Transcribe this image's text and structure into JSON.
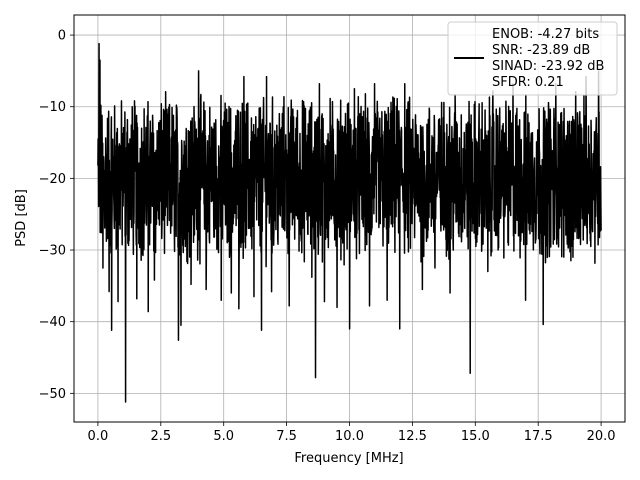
{
  "chart_data": {
    "type": "line",
    "title": "",
    "xlabel": "Frequency [MHz]",
    "ylabel": "PSD [dB]",
    "xlim": [
      -0.95,
      20.95
    ],
    "ylim": [
      -54,
      2.8
    ],
    "grid": true,
    "legend_position": "top-right",
    "xticks": [
      0.0,
      2.5,
      5.0,
      7.5,
      10.0,
      12.5,
      15.0,
      17.5,
      20.0
    ],
    "xtick_labels": [
      "0.0",
      "2.5",
      "5.0",
      "7.5",
      "10.0",
      "12.5",
      "15.0",
      "17.5",
      "20.0"
    ],
    "yticks": [
      0,
      -10,
      -20,
      -30,
      -40,
      -50
    ],
    "ytick_labels": [
      "0",
      "−10",
      "−20",
      "−30",
      "−40",
      "−50"
    ],
    "legend": {
      "lines": [
        "ENOB: -4.27 bits",
        "SNR: -23.89 dB",
        "SINAD: -23.92 dB",
        "SFDR: 0.21"
      ]
    },
    "series": [
      {
        "color": "#000000",
        "x_range_mhz": [
          0,
          20
        ],
        "noise_floor_band_db": [
          -30,
          -10
        ],
        "peak_db": [
          [
            0.05,
            -1.2
          ],
          [
            0.08,
            -3.5
          ],
          [
            0.1,
            -16.0
          ],
          [
            0.2,
            -32.5
          ],
          [
            0.45,
            -35.8
          ],
          [
            0.55,
            -41.2
          ],
          [
            0.8,
            -37.2
          ],
          [
            1.1,
            -51.2
          ],
          [
            1.55,
            -36.8
          ],
          [
            2.0,
            -38.6
          ],
          [
            2.25,
            -34.2
          ],
          [
            3.2,
            -42.6
          ],
          [
            3.3,
            -40.5
          ],
          [
            3.7,
            -34.8
          ],
          [
            4.3,
            -35.5
          ],
          [
            4.9,
            -37.0
          ],
          [
            5.3,
            -36.0
          ],
          [
            5.6,
            -38.2
          ],
          [
            6.2,
            -36.5
          ],
          [
            6.5,
            -41.2
          ],
          [
            6.9,
            -35.8
          ],
          [
            7.6,
            -37.8
          ],
          [
            8.5,
            -33.8
          ],
          [
            8.65,
            -47.8
          ],
          [
            9.0,
            -37.2
          ],
          [
            9.5,
            -38.0
          ],
          [
            10.0,
            -41.0
          ],
          [
            10.8,
            -37.8
          ],
          [
            11.5,
            -37.0
          ],
          [
            12.0,
            -41.0
          ],
          [
            12.9,
            -35.5
          ],
          [
            13.4,
            -32.5
          ],
          [
            14.0,
            -36.0
          ],
          [
            14.8,
            -47.2
          ],
          [
            15.5,
            -33.0
          ],
          [
            16.5,
            -33.5
          ],
          [
            17.0,
            -37.0
          ],
          [
            17.7,
            -40.4
          ],
          [
            18.8,
            -31.5
          ],
          [
            4.0,
            -5.0
          ],
          [
            5.8,
            -5.8
          ],
          [
            6.7,
            -5.8
          ],
          [
            8.8,
            -6.8
          ],
          [
            10.2,
            -7.5
          ],
          [
            11.0,
            -6.8
          ],
          [
            12.2,
            -6.8
          ],
          [
            14.2,
            -8.3
          ],
          [
            15.7,
            -7.8
          ],
          [
            16.5,
            -6.8
          ],
          [
            18.2,
            -6.8
          ],
          [
            19.4,
            -5.8
          ],
          [
            19.9,
            -5.0
          ]
        ]
      }
    ]
  }
}
